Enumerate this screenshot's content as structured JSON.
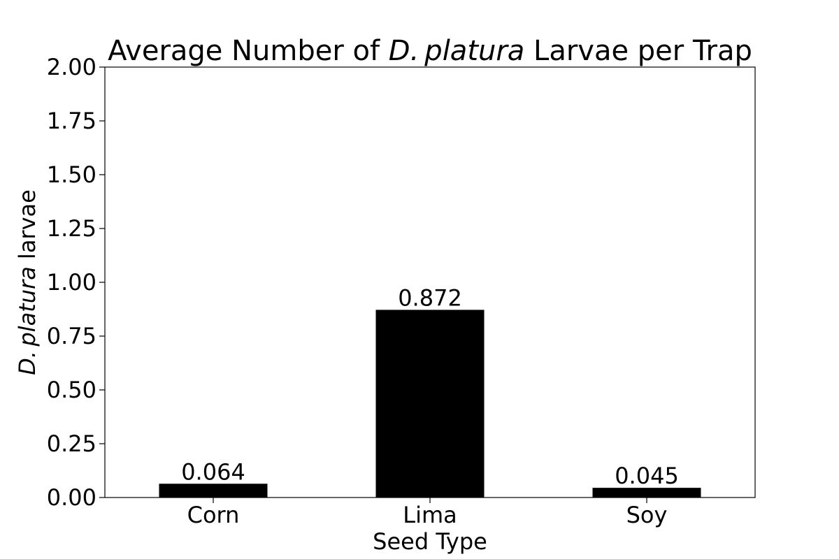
{
  "chart_data": {
    "type": "bar",
    "title": {
      "prefix": "Average Number of ",
      "italic": "D. platura",
      "suffix": " Larvae per Trap"
    },
    "xlabel": "Seed Type",
    "ylabel": {
      "italic": "D. platura",
      "suffix": " larvae"
    },
    "categories": [
      "Corn",
      "Lima",
      "Soy"
    ],
    "values": [
      0.064,
      0.872,
      0.045
    ],
    "data_labels": [
      "0.064",
      "0.872",
      "0.045"
    ],
    "ylim": [
      0,
      2.0
    ],
    "yticks": [
      0.0,
      0.25,
      0.5,
      0.75,
      1.0,
      1.25,
      1.5,
      1.75,
      2.0
    ],
    "ytick_labels": [
      "0.00",
      "0.25",
      "0.50",
      "0.75",
      "1.00",
      "1.25",
      "1.50",
      "1.75",
      "2.00"
    ],
    "bar_color": "#000000",
    "grid": false,
    "legend": "none"
  }
}
